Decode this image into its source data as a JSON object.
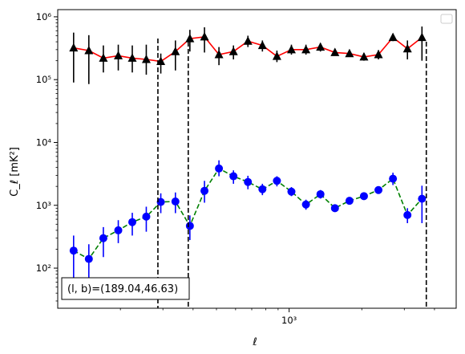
{
  "chart_data": {
    "type": "scatter",
    "x_scale": "log",
    "y_scale": "log",
    "xlim": [
      110,
      4920
    ],
    "ylim": [
      23,
      1300000
    ],
    "xlabel": "ℓ",
    "ylabel": "C_ℓ [mK²]",
    "x_ticks": [
      1000
    ],
    "x_tick_labels": [
      "10³"
    ],
    "y_ticks": [
      100,
      1000,
      10000,
      100000,
      1000000
    ],
    "y_tick_labels": [
      "10²",
      "10³",
      "10⁴",
      "10⁵",
      "10⁶"
    ],
    "legend": "upper right (empty)",
    "grid": false,
    "annotation": "(l, b)=(189.04,46.63)",
    "vertical_lines": [
      286,
      382,
      3700
    ],
    "series": [
      {
        "marker": "triangle",
        "marker_color": "#000000",
        "line_color": "#ff0000",
        "line_style": "solid",
        "error_color": "#000000",
        "points": [
          [
            128,
            320000,
            90000,
            560000
          ],
          [
            148,
            290000,
            85000,
            510000
          ],
          [
            170,
            220000,
            130000,
            350000
          ],
          [
            196,
            240000,
            140000,
            360000
          ],
          [
            224,
            220000,
            130000,
            350000
          ],
          [
            256,
            210000,
            120000,
            360000
          ],
          [
            294,
            195000,
            125000,
            260000
          ],
          [
            338,
            280000,
            140000,
            420000
          ],
          [
            388,
            450000,
            280000,
            620000
          ],
          [
            446,
            480000,
            270000,
            680000
          ],
          [
            512,
            250000,
            170000,
            330000
          ],
          [
            588,
            280000,
            210000,
            350000
          ],
          [
            675,
            410000,
            330000,
            500000
          ],
          [
            775,
            350000,
            280000,
            420000
          ],
          [
            890,
            235000,
            190000,
            290000
          ],
          [
            1022,
            300000,
            250000,
            360000
          ],
          [
            1174,
            300000,
            250000,
            360000
          ],
          [
            1348,
            330000,
            280000,
            380000
          ],
          [
            1548,
            270000,
            240000,
            310000
          ],
          [
            1778,
            260000,
            230000,
            300000
          ],
          [
            2041,
            230000,
            200000,
            265000
          ],
          [
            2344,
            250000,
            210000,
            295000
          ],
          [
            2692,
            470000,
            410000,
            540000
          ],
          [
            3091,
            310000,
            210000,
            420000
          ],
          [
            3550,
            470000,
            200000,
            700000
          ]
        ]
      },
      {
        "marker": "circle",
        "marker_color": "#0000ff",
        "line_color": "#008000",
        "line_style": "dashed",
        "error_color": "#0000ff",
        "points": [
          [
            128,
            190,
            60,
            330
          ],
          [
            148,
            140,
            60,
            240
          ],
          [
            170,
            300,
            150,
            450
          ],
          [
            196,
            400,
            250,
            580
          ],
          [
            224,
            540,
            330,
            760
          ],
          [
            256,
            660,
            380,
            950
          ],
          [
            294,
            1130,
            750,
            1550
          ],
          [
            338,
            1150,
            750,
            1600
          ],
          [
            388,
            470,
            280,
            690
          ],
          [
            446,
            1700,
            1100,
            2450
          ],
          [
            512,
            3850,
            2900,
            5200
          ],
          [
            588,
            2900,
            2200,
            3600
          ],
          [
            675,
            2350,
            1800,
            2950
          ],
          [
            775,
            1800,
            1450,
            2200
          ],
          [
            890,
            2450,
            2000,
            2900
          ],
          [
            1022,
            1650,
            1400,
            1950
          ],
          [
            1174,
            1030,
            850,
            1230
          ],
          [
            1348,
            1500,
            1280,
            1750
          ],
          [
            1548,
            900,
            820,
            990
          ],
          [
            1778,
            1180,
            1060,
            1300
          ],
          [
            2041,
            1400,
            1220,
            1600
          ],
          [
            2344,
            1750,
            1550,
            1980
          ],
          [
            2692,
            2650,
            2100,
            3300
          ],
          [
            3091,
            700,
            520,
            900
          ],
          [
            3550,
            1270,
            520,
            2050
          ]
        ]
      }
    ]
  }
}
